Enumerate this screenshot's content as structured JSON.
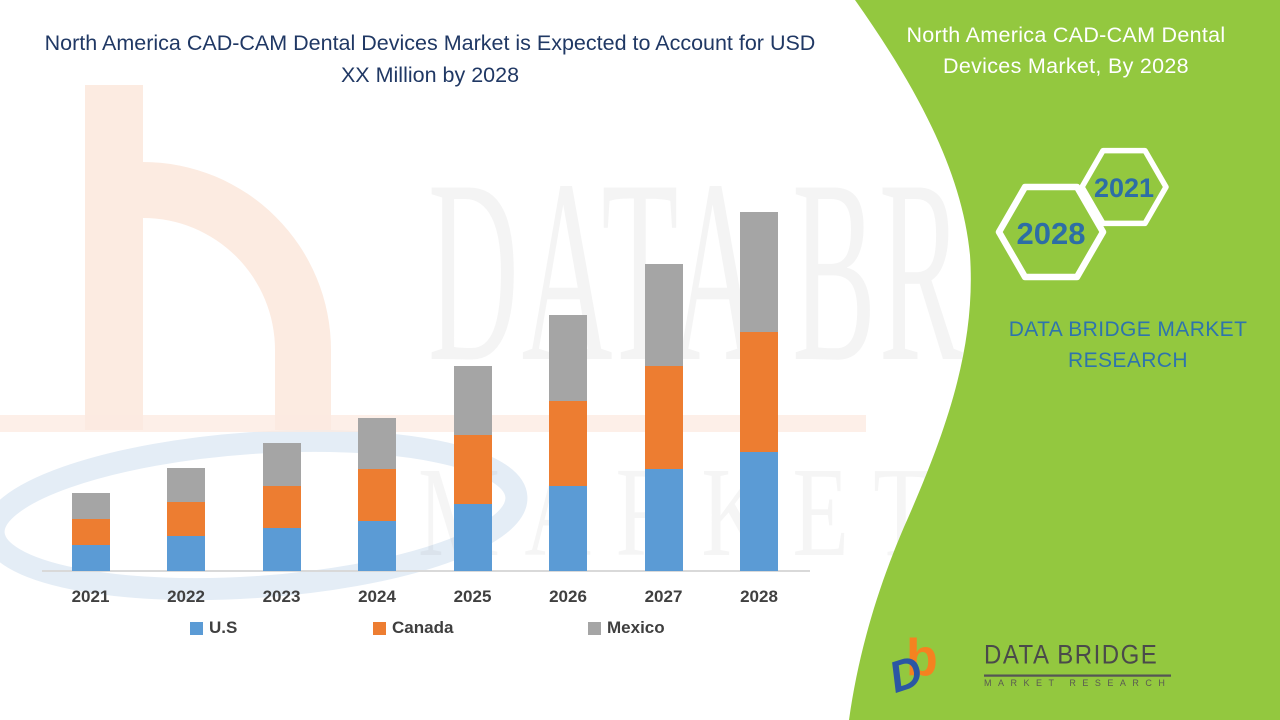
{
  "main_title": "North America CAD-CAM Dental Devices Market is Expected to Account for USD XX Million by 2028",
  "chart_data": {
    "type": "bar",
    "stacked": true,
    "categories": [
      "2021",
      "2022",
      "2023",
      "2024",
      "2025",
      "2026",
      "2027",
      "2028"
    ],
    "series": [
      {
        "name": "U.S",
        "color": "#5B9BD5",
        "values": [
          26,
          35,
          43,
          50,
          67,
          85,
          102,
          119
        ]
      },
      {
        "name": "Canada",
        "color": "#ED7D31",
        "values": [
          26,
          34,
          42,
          52,
          69,
          85,
          103,
          120
        ]
      },
      {
        "name": "Mexico",
        "color": "#A5A5A5",
        "values": [
          26,
          34,
          43,
          51,
          69,
          86,
          102,
          120
        ]
      }
    ],
    "title": "North America CAD-CAM Dental Devices Market is Expected to Account for USD XX Million by 2028",
    "xlabel": "",
    "ylabel": "",
    "value_unit": "relative height (y-axis unlabeled, values shown as USD XX Million)",
    "stack_totals_relative": [
      3,
      4,
      5,
      6,
      8,
      10,
      12,
      14
    ],
    "y_axis_visible": false,
    "grid": false,
    "legend_position": "bottom"
  },
  "side_panel": {
    "title": "North America CAD-CAM Dental Devices Market,  By 2028",
    "hexagons": [
      {
        "label": "2021"
      },
      {
        "label": "2028"
      }
    ],
    "brand_text": "DATA BRIDGE MARKET RESEARCH",
    "logo": {
      "icon_b": "b",
      "icon_d": "D",
      "name": "DATA BRIDGE",
      "subtitle": "MARKET RESEARCH"
    }
  },
  "watermark": {
    "line1": "DATA BRIDGE",
    "line2": "MARKET RESEARCH"
  },
  "colors": {
    "panel_green": "#93C83F",
    "title_navy": "#203864",
    "hexagon_year_blue": "#2D6EA5",
    "brand_blue": "#2E74AD",
    "us_blue": "#5B9BD5",
    "canada_orange": "#ED7D31",
    "mexico_gray": "#A5A5A5",
    "axis_gray": "#D9D9D9",
    "label_gray": "#404040"
  }
}
